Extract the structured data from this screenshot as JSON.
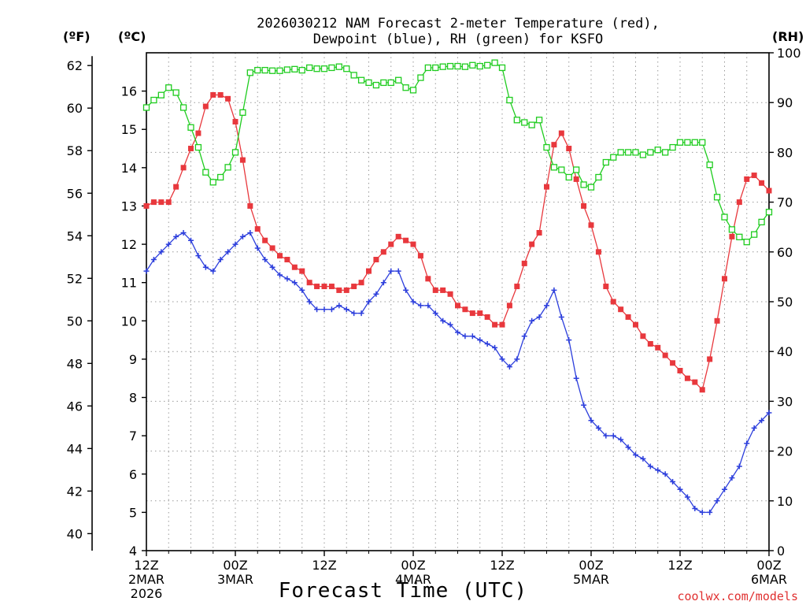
{
  "chart_data": {
    "type": "line",
    "title_line1": "2026030212 NAM Forecast 2-meter Temperature (red),",
    "title_line2": "Dewpoint (blue), RH (green) for KSFO",
    "units": {
      "fahrenheit": "(ºF)",
      "celsius": "(ºC)",
      "rh": "(RH)"
    },
    "xlabel": "Forecast Time (UTC)",
    "credit": "coolwx.com/models",
    "x_range_hours": [
      0,
      84
    ],
    "x_ticks": [
      {
        "hour": 0,
        "lines": [
          "12Z",
          "2MAR",
          "2026"
        ]
      },
      {
        "hour": 12,
        "lines": [
          "00Z",
          "3MAR"
        ]
      },
      {
        "hour": 24,
        "lines": [
          "12Z"
        ]
      },
      {
        "hour": 36,
        "lines": [
          "00Z",
          "4MAR"
        ]
      },
      {
        "hour": 48,
        "lines": [
          "12Z"
        ]
      },
      {
        "hour": 60,
        "lines": [
          "00Z",
          "5MAR"
        ]
      },
      {
        "hour": 72,
        "lines": [
          "12Z"
        ]
      },
      {
        "hour": 84,
        "lines": [
          "00Z",
          "6MAR"
        ]
      }
    ],
    "y_left_c": {
      "min": 4,
      "max": 17,
      "ticks": [
        4,
        5,
        6,
        7,
        8,
        9,
        10,
        11,
        12,
        13,
        14,
        15,
        16
      ]
    },
    "y_left_f": {
      "ticks": [
        40,
        42,
        44,
        46,
        48,
        50,
        52,
        54,
        56,
        58,
        60,
        62
      ]
    },
    "y_right_rh": {
      "min": 0,
      "max": 100,
      "ticks": [
        0,
        10,
        20,
        30,
        40,
        50,
        60,
        70,
        80,
        90,
        100
      ]
    },
    "grid": true,
    "series": [
      {
        "name": "Temperature",
        "color": "#e8383d",
        "marker": "filled-square",
        "axis": "celsius",
        "x": [
          0,
          1,
          2,
          3,
          4,
          5,
          6,
          7,
          8,
          9,
          10,
          11,
          12,
          13,
          14,
          15,
          16,
          17,
          18,
          19,
          20,
          21,
          22,
          23,
          24,
          25,
          26,
          27,
          28,
          29,
          30,
          31,
          32,
          33,
          34,
          35,
          36,
          37,
          38,
          39,
          40,
          41,
          42,
          43,
          44,
          45,
          46,
          47,
          48,
          49,
          50,
          51,
          52,
          53,
          54,
          55,
          56,
          57,
          58,
          59,
          60,
          61,
          62,
          63,
          64,
          65,
          66,
          67,
          68,
          69,
          70,
          71,
          72,
          73,
          74,
          75,
          76,
          77,
          78,
          79,
          80,
          81,
          82,
          83,
          84
        ],
        "values": [
          13.0,
          13.1,
          13.1,
          13.1,
          13.5,
          14.0,
          14.5,
          14.9,
          15.6,
          15.9,
          15.9,
          15.8,
          15.2,
          14.2,
          13.0,
          12.4,
          12.1,
          11.9,
          11.7,
          11.6,
          11.4,
          11.3,
          11.0,
          10.9,
          10.9,
          10.9,
          10.8,
          10.8,
          10.9,
          11.0,
          11.3,
          11.6,
          11.8,
          12.0,
          12.2,
          12.1,
          12.0,
          11.7,
          11.1,
          10.8,
          10.8,
          10.7,
          10.4,
          10.3,
          10.2,
          10.2,
          10.1,
          9.9,
          9.9,
          10.4,
          10.9,
          11.5,
          12.0,
          12.3,
          13.5,
          14.6,
          14.9,
          14.5,
          13.7,
          13.0,
          12.5,
          11.8,
          10.9,
          10.5,
          10.3,
          10.1,
          9.9,
          9.6,
          9.4,
          9.3,
          9.1,
          8.9,
          8.7,
          8.5,
          8.4,
          8.2,
          9.0,
          10.0,
          11.1,
          12.2,
          13.1,
          13.7,
          13.8,
          13.6,
          13.4
        ]
      },
      {
        "name": "Dewpoint",
        "color": "#2c3edc",
        "marker": "plus",
        "axis": "celsius",
        "x": [
          0,
          1,
          2,
          3,
          4,
          5,
          6,
          7,
          8,
          9,
          10,
          11,
          12,
          13,
          14,
          15,
          16,
          17,
          18,
          19,
          20,
          21,
          22,
          23,
          24,
          25,
          26,
          27,
          28,
          29,
          30,
          31,
          32,
          33,
          34,
          35,
          36,
          37,
          38,
          39,
          40,
          41,
          42,
          43,
          44,
          45,
          46,
          47,
          48,
          49,
          50,
          51,
          52,
          53,
          54,
          55,
          56,
          57,
          58,
          59,
          60,
          61,
          62,
          63,
          64,
          65,
          66,
          67,
          68,
          69,
          70,
          71,
          72,
          73,
          74,
          75,
          76,
          77,
          78,
          79,
          80,
          81,
          82,
          83,
          84
        ],
        "values": [
          11.3,
          11.6,
          11.8,
          12.0,
          12.2,
          12.3,
          12.1,
          11.7,
          11.4,
          11.3,
          11.6,
          11.8,
          12.0,
          12.2,
          12.3,
          11.9,
          11.6,
          11.4,
          11.2,
          11.1,
          11.0,
          10.8,
          10.5,
          10.3,
          10.3,
          10.3,
          10.4,
          10.3,
          10.2,
          10.2,
          10.5,
          10.7,
          11.0,
          11.3,
          11.3,
          10.8,
          10.5,
          10.4,
          10.4,
          10.2,
          10.0,
          9.9,
          9.7,
          9.6,
          9.6,
          9.5,
          9.4,
          9.3,
          9.0,
          8.8,
          9.0,
          9.6,
          10.0,
          10.1,
          10.4,
          10.8,
          10.1,
          9.5,
          8.5,
          7.8,
          7.4,
          7.2,
          7.0,
          7.0,
          6.9,
          6.7,
          6.5,
          6.4,
          6.2,
          6.1,
          6.0,
          5.8,
          5.6,
          5.4,
          5.1,
          5.0,
          5.0,
          5.3,
          5.6,
          5.9,
          6.2,
          6.8,
          7.2,
          7.4,
          7.6
        ]
      },
      {
        "name": "RH",
        "color": "#1fcc1f",
        "marker": "open-square",
        "axis": "rh",
        "x": [
          0,
          1,
          2,
          3,
          4,
          5,
          6,
          7,
          8,
          9,
          10,
          11,
          12,
          13,
          14,
          15,
          16,
          17,
          18,
          19,
          20,
          21,
          22,
          23,
          24,
          25,
          26,
          27,
          28,
          29,
          30,
          31,
          32,
          33,
          34,
          35,
          36,
          37,
          38,
          39,
          40,
          41,
          42,
          43,
          44,
          45,
          46,
          47,
          48,
          49,
          50,
          51,
          52,
          53,
          54,
          55,
          56,
          57,
          58,
          59,
          60,
          61,
          62,
          63,
          64,
          65,
          66,
          67,
          68,
          69,
          70,
          71,
          72,
          73,
          74,
          75,
          76,
          77,
          78,
          79,
          80,
          81,
          82,
          83,
          84
        ],
        "values": [
          89,
          90.5,
          91.5,
          93,
          92,
          89,
          85,
          81,
          76,
          74,
          75,
          77,
          80,
          88,
          96,
          96.5,
          96.5,
          96.4,
          96.4,
          96.6,
          96.7,
          96.5,
          97,
          96.8,
          96.8,
          97,
          97.2,
          96.8,
          95.5,
          94.5,
          94,
          93.5,
          94,
          94,
          94.5,
          93,
          92.5,
          95,
          97,
          97,
          97.2,
          97.3,
          97.3,
          97.2,
          97.5,
          97.3,
          97.5,
          98,
          97,
          90.5,
          86.5,
          86,
          85.5,
          86.5,
          81,
          77,
          76.5,
          75,
          76.5,
          73.5,
          73,
          75,
          78,
          79,
          80,
          80,
          80,
          79.5,
          80,
          80.5,
          80,
          81,
          82,
          82,
          82,
          82,
          77.5,
          71,
          67,
          64.5,
          63,
          62,
          63.5,
          66,
          68
        ]
      }
    ]
  }
}
